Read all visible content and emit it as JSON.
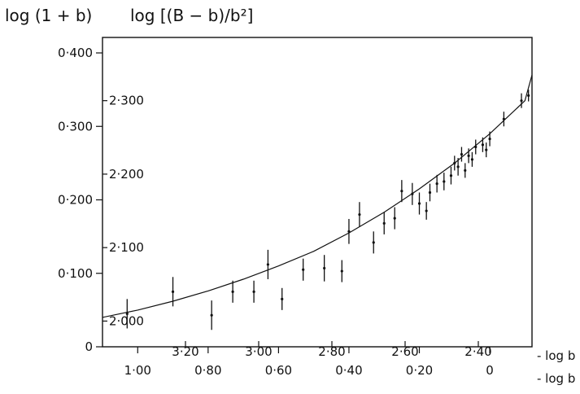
{
  "chart_data": {
    "type": "scatter",
    "title_left": "log (1 + b)",
    "title_right": "log [(B − b)/b²]",
    "left_axis": {
      "ticks": [
        "0·400",
        "0·300",
        "0·200",
        "0·100",
        "0"
      ],
      "values": [
        0.4,
        0.3,
        0.2,
        0.1,
        0
      ],
      "ylim": [
        0,
        0.4
      ]
    },
    "inner_axis": {
      "ticks": [
        "2·300",
        "2·200",
        "2·100",
        "2·000"
      ],
      "values": [
        2.3,
        2.2,
        2.1,
        2.0
      ]
    },
    "inner_x_axis": {
      "ticks": [
        "3·20",
        "3·00",
        "2·80",
        "2·60",
        "2·40"
      ],
      "values": [
        3.2,
        3.0,
        2.8,
        2.6,
        2.4
      ],
      "label": "- log b"
    },
    "bottom_x_axis": {
      "ticks": [
        "1·00",
        "0·80",
        "0·60",
        "0·40",
        "0·20",
        "0"
      ],
      "values": [
        1.0,
        0.8,
        0.6,
        0.4,
        0.2,
        0
      ],
      "xlim": [
        1.1,
        -0.12
      ],
      "label": "- log b"
    },
    "grid": false,
    "fit_curve": [
      [
        1.1,
        0.04
      ],
      [
        1.0,
        0.05
      ],
      [
        0.9,
        0.062
      ],
      [
        0.8,
        0.076
      ],
      [
        0.7,
        0.092
      ],
      [
        0.6,
        0.11
      ],
      [
        0.5,
        0.13
      ],
      [
        0.4,
        0.155
      ],
      [
        0.3,
        0.183
      ],
      [
        0.2,
        0.215
      ],
      [
        0.1,
        0.25
      ],
      [
        0.0,
        0.29
      ],
      [
        -0.1,
        0.335
      ],
      [
        -0.12,
        0.37
      ]
    ],
    "points": [
      {
        "x": 1.03,
        "y": 0.045,
        "err": 0.02
      },
      {
        "x": 0.9,
        "y": 0.075,
        "err": 0.02
      },
      {
        "x": 0.79,
        "y": 0.043,
        "err": 0.02
      },
      {
        "x": 0.73,
        "y": 0.075,
        "err": 0.015
      },
      {
        "x": 0.67,
        "y": 0.075,
        "err": 0.015
      },
      {
        "x": 0.63,
        "y": 0.112,
        "err": 0.02
      },
      {
        "x": 0.59,
        "y": 0.065,
        "err": 0.015
      },
      {
        "x": 0.53,
        "y": 0.105,
        "err": 0.015
      },
      {
        "x": 0.47,
        "y": 0.107,
        "err": 0.018
      },
      {
        "x": 0.42,
        "y": 0.103,
        "err": 0.015
      },
      {
        "x": 0.4,
        "y": 0.157,
        "err": 0.017
      },
      {
        "x": 0.37,
        "y": 0.18,
        "err": 0.017
      },
      {
        "x": 0.33,
        "y": 0.142,
        "err": 0.015
      },
      {
        "x": 0.3,
        "y": 0.168,
        "err": 0.015
      },
      {
        "x": 0.27,
        "y": 0.175,
        "err": 0.015
      },
      {
        "x": 0.25,
        "y": 0.212,
        "err": 0.015
      },
      {
        "x": 0.22,
        "y": 0.208,
        "err": 0.015
      },
      {
        "x": 0.2,
        "y": 0.195,
        "err": 0.015
      },
      {
        "x": 0.18,
        "y": 0.185,
        "err": 0.012
      },
      {
        "x": 0.17,
        "y": 0.21,
        "err": 0.012
      },
      {
        "x": 0.15,
        "y": 0.222,
        "err": 0.012
      },
      {
        "x": 0.13,
        "y": 0.225,
        "err": 0.012
      },
      {
        "x": 0.11,
        "y": 0.233,
        "err": 0.012
      },
      {
        "x": 0.09,
        "y": 0.245,
        "err": 0.012
      },
      {
        "x": 0.08,
        "y": 0.262,
        "err": 0.01
      },
      {
        "x": 0.06,
        "y": 0.26,
        "err": 0.01
      },
      {
        "x": 0.05,
        "y": 0.255,
        "err": 0.01
      },
      {
        "x": 0.04,
        "y": 0.272,
        "err": 0.01
      },
      {
        "x": 0.02,
        "y": 0.275,
        "err": 0.01
      },
      {
        "x": 0.01,
        "y": 0.268,
        "err": 0.01
      },
      {
        "x": 0.0,
        "y": 0.283,
        "err": 0.01
      },
      {
        "x": -0.04,
        "y": 0.31,
        "err": 0.01
      },
      {
        "x": -0.09,
        "y": 0.335,
        "err": 0.01
      },
      {
        "x": -0.11,
        "y": 0.342,
        "err": 0.008
      },
      {
        "x": 0.1,
        "y": 0.25,
        "err": 0.01
      },
      {
        "x": 0.07,
        "y": 0.24,
        "err": 0.01
      }
    ]
  }
}
